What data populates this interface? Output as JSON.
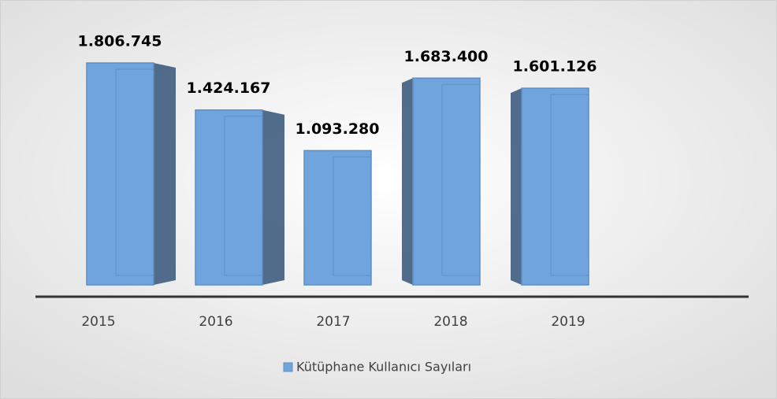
{
  "chart_data": {
    "type": "bar",
    "categories": [
      "2015",
      "2016",
      "2017",
      "2018",
      "2019"
    ],
    "series": [
      {
        "name": "Kütüphane Kullanıcı Sayıları",
        "color": "#6fa5dc",
        "values": [
          1806745,
          1424167,
          1093280,
          1683400,
          1601126
        ],
        "value_labels": [
          "1.806.745",
          "1.424.167",
          "1.093.280",
          "1.683.400",
          "1.601.126"
        ]
      }
    ],
    "legend": "bottom"
  }
}
